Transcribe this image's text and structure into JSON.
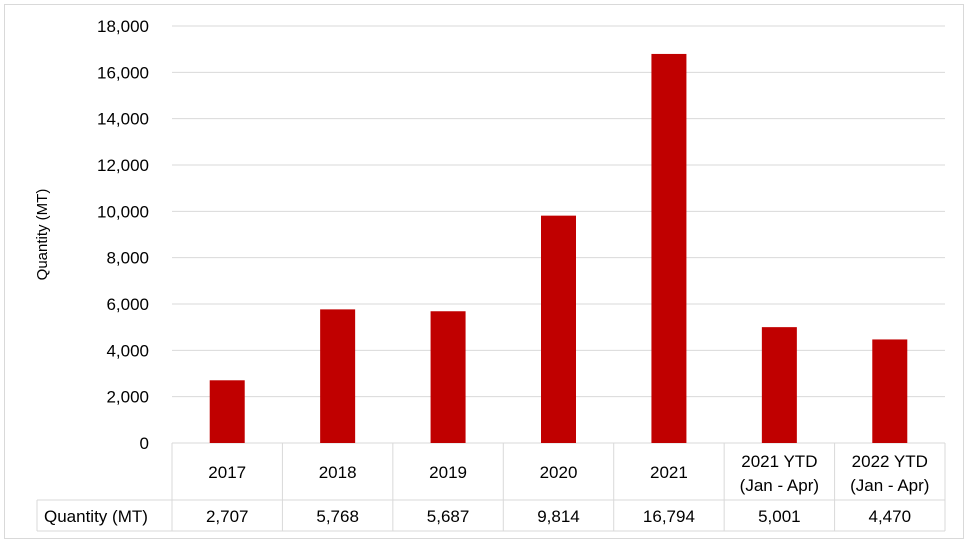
{
  "chart_data": {
    "type": "bar",
    "ylabel": "Quantity (MT)",
    "ylim": [
      0,
      18000
    ],
    "yticks": [
      "0",
      "2,000",
      "4,000",
      "6,000",
      "8,000",
      "10,000",
      "12,000",
      "14,000",
      "16,000",
      "18,000"
    ],
    "ytick_values": [
      0,
      2000,
      4000,
      6000,
      8000,
      10000,
      12000,
      14000,
      16000,
      18000
    ],
    "categories": [
      [
        "2017"
      ],
      [
        "2018"
      ],
      [
        "2019"
      ],
      [
        "2020"
      ],
      [
        "2021"
      ],
      [
        "2021 YTD",
        "(Jan - Apr)"
      ],
      [
        "2022 YTD",
        "(Jan - Apr)"
      ]
    ],
    "series": [
      {
        "name": "Quantity (MT)",
        "values": [
          2707,
          5768,
          5687,
          9814,
          16794,
          5001,
          4470
        ],
        "labels": [
          "2,707",
          "5,768",
          "5,687",
          "9,814",
          "16,794",
          "5,001",
          "4,470"
        ]
      }
    ],
    "bar_color": "#c00000",
    "gridline_color": "#d9d9d9",
    "grid": true,
    "legend": "data-table-below"
  }
}
